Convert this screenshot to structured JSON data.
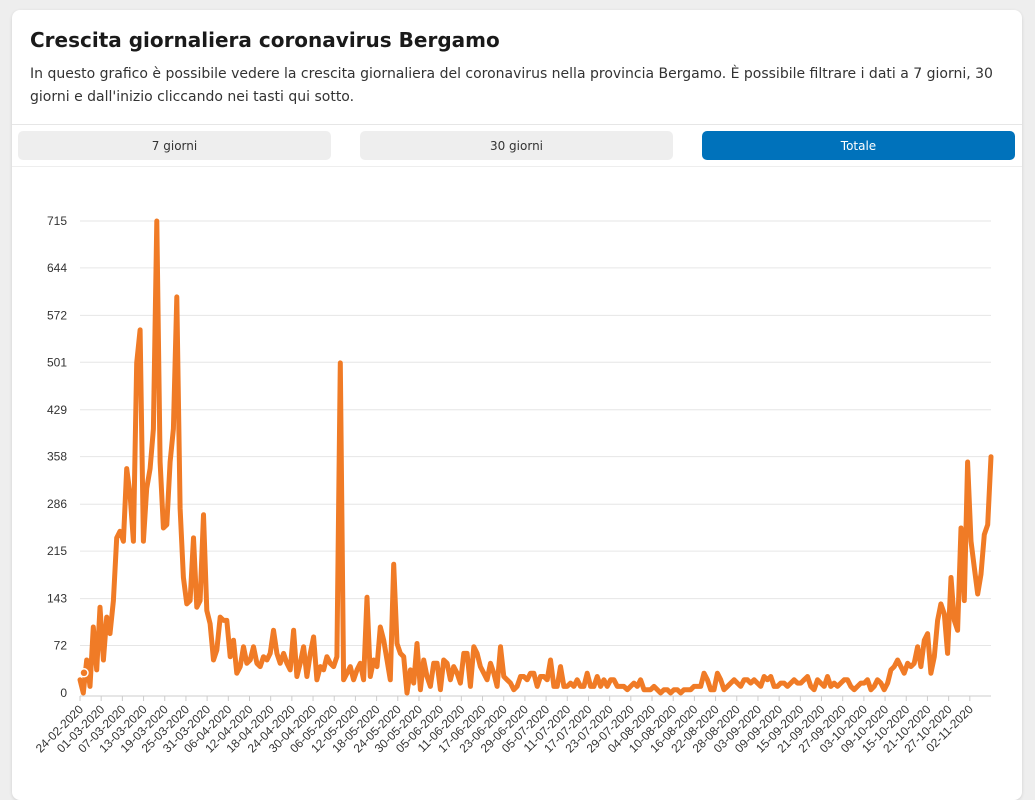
{
  "header": {
    "title": "Crescita giornaliera coronavirus Bergamo",
    "description": "In questo grafico è possibile vedere la crescita giornaliera del coronavirus nella provincia Bergamo. È possibile filtrare i dati a 7 giorni, 30 giorni e dall'inizio cliccando nei tasti qui sotto."
  },
  "filters": {
    "btn_7": "7 giorni",
    "btn_30": "30 giorni",
    "btn_total": "Totale",
    "selected": "Totale"
  },
  "colors": {
    "line": "#f07b26",
    "active_button": "#0072bb",
    "grid": "#e6e6e6"
  },
  "chart_data": {
    "type": "line",
    "title": "",
    "xlabel": "",
    "ylabel": "",
    "ylim": [
      0,
      715
    ],
    "yticks": [
      0,
      72,
      143,
      215,
      286,
      358,
      429,
      501,
      572,
      644,
      715
    ],
    "x_range": [
      "24-02-2020",
      "08-11-2020"
    ],
    "xtick_labels": [
      "24-02-2020",
      "01-03-2020",
      "07-03-2020",
      "13-03-2020",
      "19-03-2020",
      "25-03-2020",
      "31-03-2020",
      "06-04-2020",
      "12-04-2020",
      "18-04-2020",
      "24-04-2020",
      "30-04-2020",
      "06-05-2020",
      "12-05-2020",
      "18-05-2020",
      "24-05-2020",
      "30-05-2020",
      "05-06-2020",
      "11-06-2020",
      "17-06-2020",
      "23-06-2020",
      "29-06-2020",
      "05-07-2020",
      "11-07-2020",
      "17-07-2020",
      "23-07-2020",
      "29-07-2020",
      "04-08-2020",
      "10-08-2020",
      "16-08-2020",
      "22-08-2020",
      "28-08-2020",
      "03-09-2020",
      "09-09-2020",
      "15-09-2020",
      "21-09-2020",
      "27-09-2020",
      "03-10-2020",
      "09-10-2020",
      "15-10-2020",
      "21-10-2020",
      "27-10-2020",
      "02-11-2020"
    ],
    "grid": true,
    "legend": "none",
    "series": [
      {
        "values": [
          20,
          0,
          50,
          10,
          100,
          35,
          130,
          50,
          115,
          90,
          140,
          235,
          245,
          230,
          340,
          300,
          230,
          500,
          550,
          230,
          310,
          340,
          400,
          715,
          350,
          250,
          255,
          350,
          400,
          600,
          280,
          175,
          135,
          140,
          235,
          130,
          140,
          270,
          125,
          105,
          50,
          65,
          115,
          110,
          110,
          55,
          80,
          30,
          40,
          70,
          45,
          50,
          70,
          45,
          40,
          55,
          50,
          60,
          95,
          60,
          45,
          60,
          45,
          35,
          95,
          25,
          45,
          70,
          25,
          60,
          85,
          20,
          40,
          35,
          55,
          45,
          40,
          55,
          500,
          20,
          30,
          40,
          20,
          35,
          45,
          20,
          145,
          25,
          50,
          40,
          100,
          80,
          50,
          20,
          195,
          75,
          60,
          55,
          0,
          35,
          15,
          75,
          5,
          50,
          25,
          10,
          45,
          45,
          5,
          50,
          45,
          20,
          40,
          30,
          15,
          60,
          60,
          10,
          70,
          60,
          40,
          30,
          20,
          45,
          30,
          10,
          70,
          25,
          20,
          15,
          5,
          10,
          25,
          25,
          20,
          30,
          30,
          10,
          25,
          25,
          20,
          50,
          10,
          10,
          40,
          10,
          10,
          15,
          10,
          20,
          10,
          10,
          30,
          10,
          10,
          25,
          10,
          20,
          10,
          20,
          20,
          10,
          10,
          10,
          5,
          10,
          15,
          10,
          20,
          5,
          5,
          5,
          10,
          5,
          0,
          5,
          5,
          0,
          5,
          5,
          0,
          5,
          5,
          5,
          10,
          10,
          10,
          30,
          20,
          5,
          5,
          30,
          20,
          5,
          10,
          15,
          20,
          15,
          10,
          20,
          20,
          15,
          20,
          15,
          10,
          25,
          20,
          25,
          10,
          10,
          15,
          15,
          10,
          15,
          20,
          15,
          15,
          20,
          25,
          10,
          5,
          20,
          15,
          10,
          25,
          10,
          15,
          10,
          15,
          20,
          20,
          10,
          5,
          10,
          15,
          15,
          20,
          5,
          10,
          20,
          15,
          5,
          15,
          35,
          40,
          50,
          40,
          30,
          45,
          40,
          45,
          70,
          40,
          80,
          90,
          30,
          55,
          110,
          135,
          120,
          60,
          175,
          110,
          95,
          250,
          140,
          350,
          230,
          190,
          150,
          180,
          240,
          255,
          358
        ]
      }
    ]
  }
}
